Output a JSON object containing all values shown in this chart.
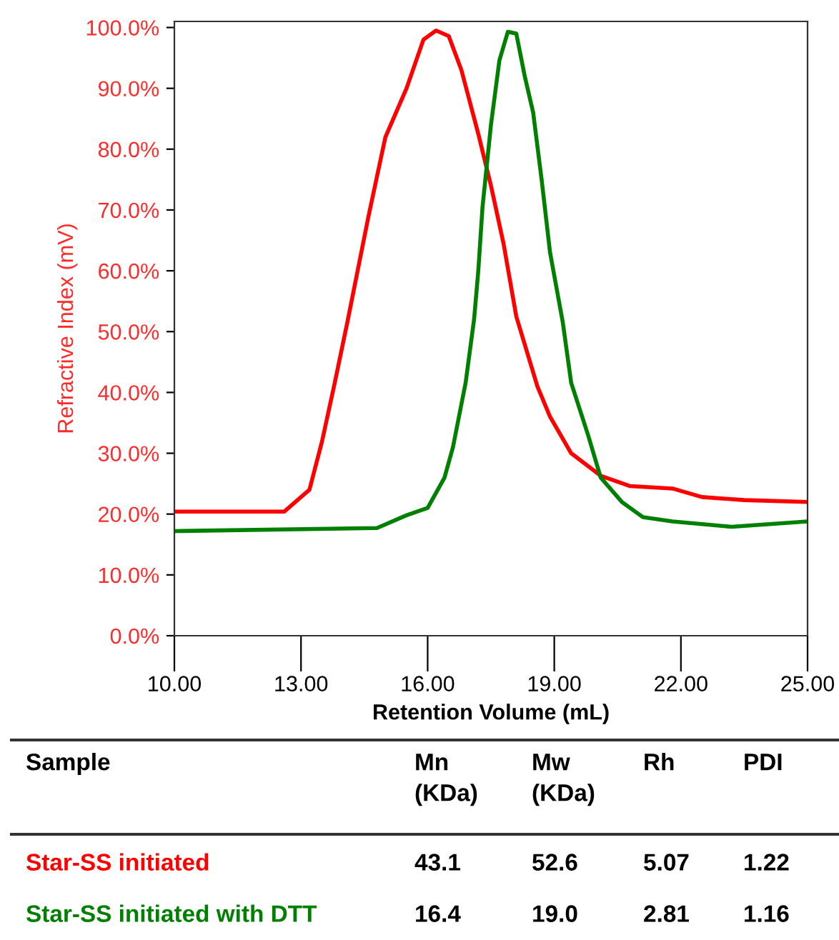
{
  "chart_data": {
    "type": "line",
    "xlabel": "Retention Volume (mL)",
    "ylabel": "Refractive Index (mV)",
    "xlim": [
      10,
      25
    ],
    "xticks": [
      {
        "value": 10,
        "label": "10.00"
      },
      {
        "value": 13,
        "label": "13.00"
      },
      {
        "value": 16,
        "label": "16.00"
      },
      {
        "value": 19,
        "label": "19.00"
      },
      {
        "value": 22,
        "label": "22.00"
      },
      {
        "value": 25,
        "label": "25.00"
      }
    ],
    "ylim": [
      0,
      101
    ],
    "yticks": [
      {
        "value": 0,
        "label": "0.0%"
      },
      {
        "value": 10,
        "label": "10.0%"
      },
      {
        "value": 20,
        "label": "20.0%"
      },
      {
        "value": 30,
        "label": "30.0%"
      },
      {
        "value": 40,
        "label": "40.0%"
      },
      {
        "value": 50,
        "label": "50.0%"
      },
      {
        "value": 60,
        "label": "60.0%"
      },
      {
        "value": 70,
        "label": "70.0%"
      },
      {
        "value": 80,
        "label": "80.0%"
      },
      {
        "value": 90,
        "label": "90.0%"
      },
      {
        "value": 100,
        "label": "100.0%"
      }
    ],
    "grid": false,
    "legend": false,
    "marker": "none",
    "line_style": "solid",
    "series": [
      {
        "name": "Star-SS initiated",
        "color": "#ff0000",
        "x": [
          10.0,
          12.6,
          13.2,
          13.5,
          13.8,
          14.1,
          14.6,
          15.0,
          15.5,
          15.9,
          16.2,
          16.5,
          16.8,
          17.2,
          17.5,
          17.8,
          18.1,
          18.6,
          18.9,
          19.4,
          20.1,
          20.8,
          21.8,
          22.5,
          23.5,
          25.0
        ],
        "values": [
          20.4,
          20.4,
          24,
          32,
          41.6,
          51.6,
          69,
          82,
          90,
          98,
          99.5,
          98.6,
          93,
          82.5,
          74,
          64.4,
          52.5,
          41,
          36,
          30,
          26.3,
          24.6,
          24.2,
          22.8,
          22.3,
          22
        ]
      },
      {
        "name": "Star-SS initiated with DTT",
        "color": "#008000",
        "x": [
          10.0,
          14.8,
          15.5,
          16.0,
          16.4,
          16.6,
          16.9,
          17.1,
          17.2,
          17.3,
          17.5,
          17.7,
          17.9,
          18.1,
          18.3,
          18.5,
          18.7,
          18.9,
          19.2,
          19.4,
          19.8,
          20.1,
          20.6,
          21.1,
          21.8,
          23.2,
          25.0
        ],
        "values": [
          17.2,
          17.7,
          19.8,
          21,
          26,
          31,
          41.6,
          52,
          60,
          70.5,
          84,
          94.6,
          99.3,
          99,
          92,
          86,
          75,
          63,
          51.6,
          41.6,
          33,
          26,
          22,
          19.5,
          18.8,
          17.9,
          18.8
        ]
      }
    ],
    "annotations": [
      "Sample",
      "Mn\n(KDa)",
      "Mw\n(KDa)",
      "Rh",
      "PDI",
      "43.1",
      "52.6",
      "5.07",
      "1.22",
      "16.4",
      "19.0",
      "2.81",
      "1.16"
    ]
  }
}
